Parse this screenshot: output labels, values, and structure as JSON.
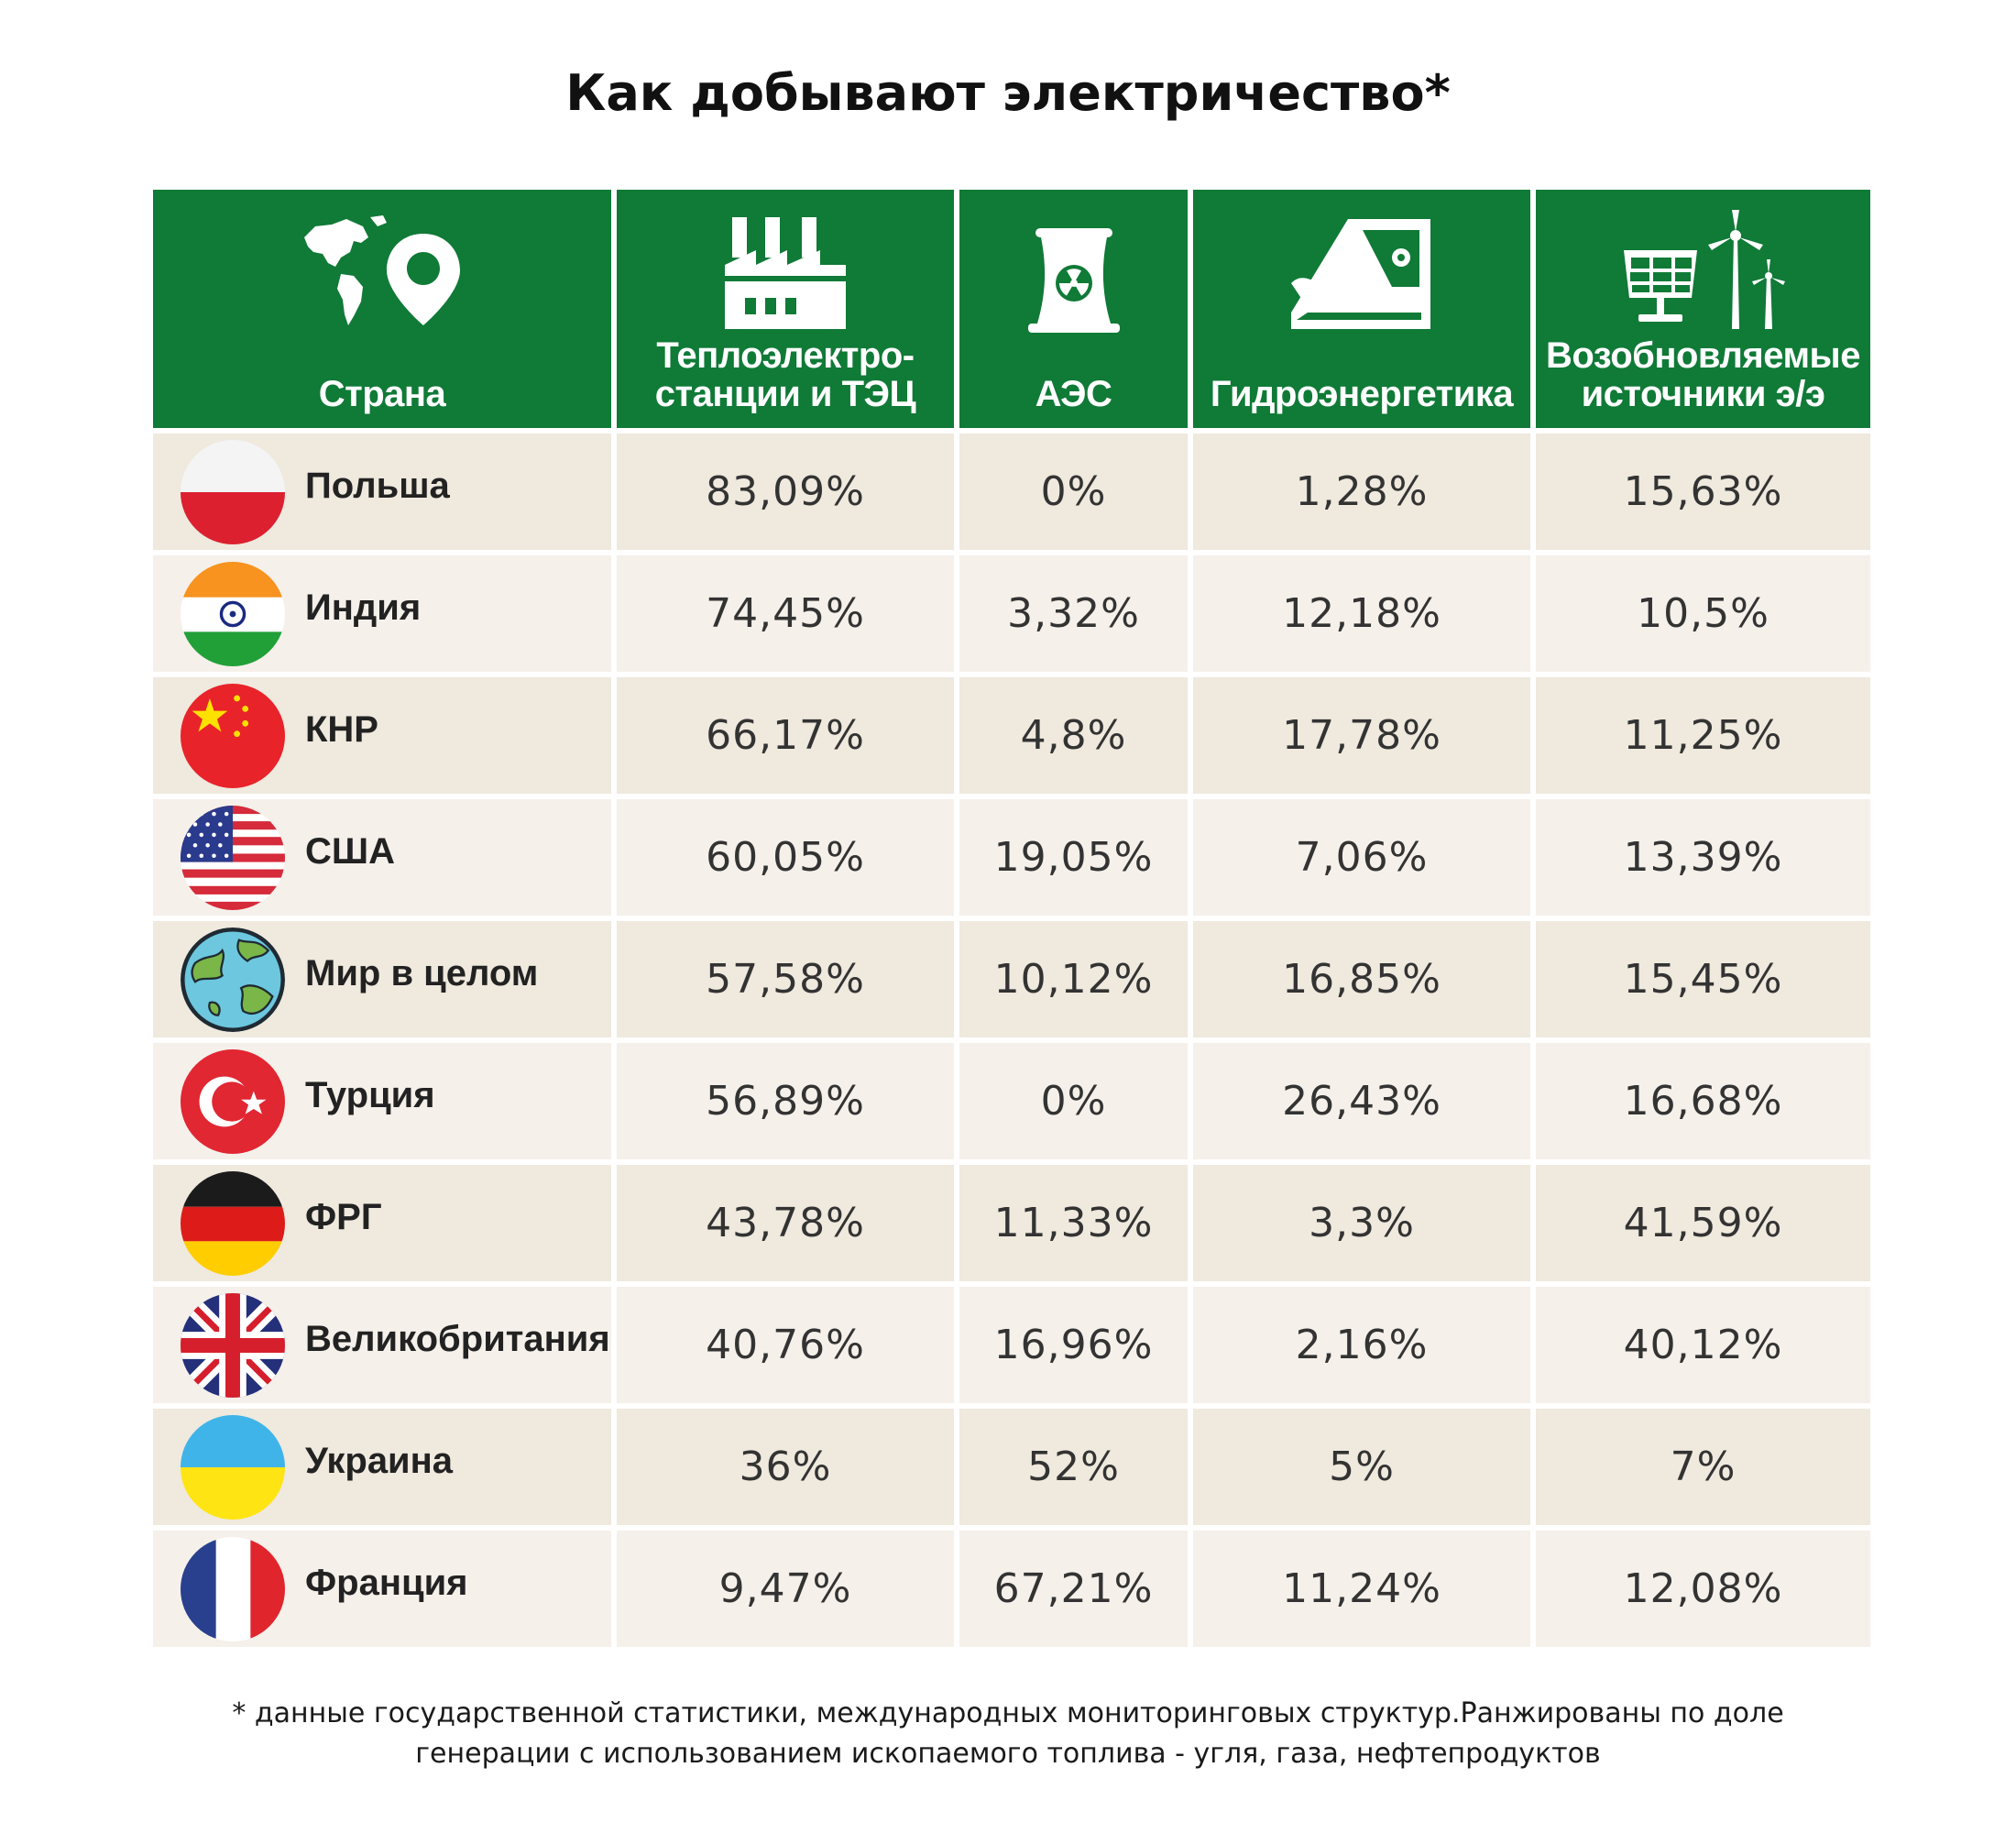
{
  "title": "Как добывают электричество*",
  "colors": {
    "header_green": "#107a37",
    "row_light": "#f5f0ea",
    "row_dark": "#efe9de"
  },
  "columns": [
    {
      "label": "Страна",
      "icon": "globe-location-pin-icon"
    },
    {
      "label": "Теплоэлектро-станции и ТЭЦ",
      "line1": "Теплоэлектро-",
      "line2": "станции и ТЭЦ",
      "icon": "factory-icon"
    },
    {
      "label": "АЭС",
      "icon": "nuclear-plant-icon"
    },
    {
      "label": "Гидроэнергетика",
      "icon": "hydro-dam-icon"
    },
    {
      "label": "Возобновляемые источники э/э",
      "line1": "Возобновляемые",
      "line2": "источники э/э",
      "icon": "solar-wind-icon"
    }
  ],
  "rows": [
    {
      "country": "Польша",
      "flag": "poland-flag-icon",
      "thermal": "83,09%",
      "nuclear": "0%",
      "hydro": "1,28%",
      "renewable": "15,63%"
    },
    {
      "country": "Индия",
      "flag": "india-flag-icon",
      "thermal": "74,45%",
      "nuclear": "3,32%",
      "hydro": "12,18%",
      "renewable": "10,5%"
    },
    {
      "country": "КНР",
      "flag": "china-flag-icon",
      "thermal": "66,17%",
      "nuclear": "4,8%",
      "hydro": "17,78%",
      "renewable": "11,25%"
    },
    {
      "country": "США",
      "flag": "usa-flag-icon",
      "thermal": "60,05%",
      "nuclear": "19,05%",
      "hydro": "7,06%",
      "renewable": "13,39%"
    },
    {
      "country": "Мир в целом",
      "flag": "earth-globe-icon",
      "thermal": "57,58%",
      "nuclear": "10,12%",
      "hydro": "16,85%",
      "renewable": "15,45%"
    },
    {
      "country": "Турция",
      "flag": "turkey-flag-icon",
      "thermal": "56,89%",
      "nuclear": "0%",
      "hydro": "26,43%",
      "renewable": "16,68%"
    },
    {
      "country": "ФРГ",
      "flag": "germany-flag-icon",
      "thermal": "43,78%",
      "nuclear": "11,33%",
      "hydro": "3,3%",
      "renewable": "41,59%"
    },
    {
      "country": "Великобритания",
      "flag": "uk-flag-icon",
      "thermal": "40,76%",
      "nuclear": "16,96%",
      "hydro": "2,16%",
      "renewable": "40,12%"
    },
    {
      "country": "Украина",
      "flag": "ukraine-flag-icon",
      "thermal": "36%",
      "nuclear": "52%",
      "hydro": "5%",
      "renewable": "7%"
    },
    {
      "country": "Франция",
      "flag": "france-flag-icon",
      "thermal": "9,47%",
      "nuclear": "67,21%",
      "hydro": "11,24%",
      "renewable": "12,08%"
    }
  ],
  "footnote": {
    "line1": "* данные государственной статистики, международных мониторинговых структур.Ранжированы по доле",
    "line2": "генерации с использованием ископаемого топлива - угля, газа, нефтепродуктов"
  }
}
